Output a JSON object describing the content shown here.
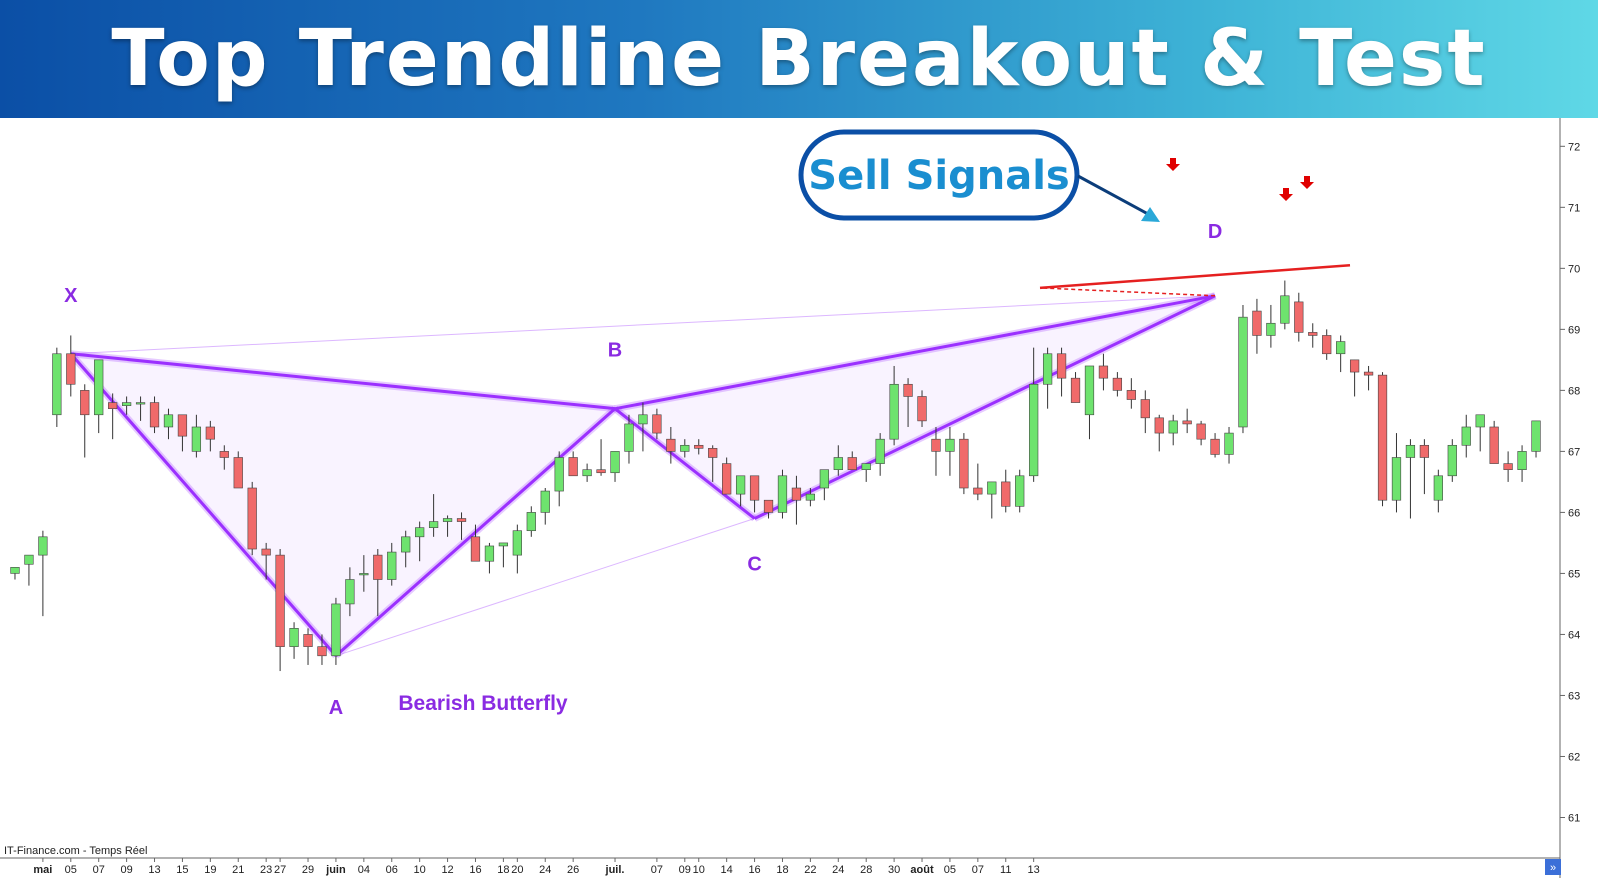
{
  "title": "Top Trendline Breakout & Test",
  "chart_data": {
    "type": "candlestick",
    "source_label": "IT-Finance.com - Temps Réel",
    "y_range": [
      60.5,
      72.3
    ],
    "y_ticks": [
      61,
      62,
      63,
      64,
      65,
      66,
      67,
      68,
      69,
      70,
      71,
      72
    ],
    "x_labels": [
      {
        "i": 2,
        "text": "mai",
        "bold": true
      },
      {
        "i": 4,
        "text": "05"
      },
      {
        "i": 6,
        "text": "07"
      },
      {
        "i": 8,
        "text": "09"
      },
      {
        "i": 10,
        "text": "13"
      },
      {
        "i": 12,
        "text": "15"
      },
      {
        "i": 14,
        "text": "19"
      },
      {
        "i": 16,
        "text": "21"
      },
      {
        "i": 18,
        "text": "23"
      },
      {
        "i": 19,
        "text": "27"
      },
      {
        "i": 21,
        "text": "29"
      },
      {
        "i": 23,
        "text": "juin",
        "bold": true
      },
      {
        "i": 25,
        "text": "04"
      },
      {
        "i": 27,
        "text": "06"
      },
      {
        "i": 29,
        "text": "10"
      },
      {
        "i": 31,
        "text": "12"
      },
      {
        "i": 33,
        "text": "16"
      },
      {
        "i": 35,
        "text": "18"
      },
      {
        "i": 36,
        "text": "20"
      },
      {
        "i": 38,
        "text": "24"
      },
      {
        "i": 40,
        "text": "26"
      },
      {
        "i": 43,
        "text": "juil.",
        "bold": true
      },
      {
        "i": 46,
        "text": "07"
      },
      {
        "i": 48,
        "text": "09"
      },
      {
        "i": 49,
        "text": "10"
      },
      {
        "i": 51,
        "text": "14"
      },
      {
        "i": 53,
        "text": "16"
      },
      {
        "i": 55,
        "text": "18"
      },
      {
        "i": 57,
        "text": "22"
      },
      {
        "i": 59,
        "text": "24"
      },
      {
        "i": 61,
        "text": "28"
      },
      {
        "i": 63,
        "text": "30"
      },
      {
        "i": 65,
        "text": "août",
        "bold": true
      },
      {
        "i": 67,
        "text": "05"
      },
      {
        "i": 69,
        "text": "07"
      },
      {
        "i": 71,
        "text": "11"
      },
      {
        "i": 73,
        "text": "13"
      }
    ],
    "candles": [
      [
        65.0,
        65.1,
        64.9,
        65.1
      ],
      [
        65.15,
        65.3,
        64.8,
        65.3
      ],
      [
        65.3,
        65.7,
        64.3,
        65.6
      ],
      [
        67.6,
        68.7,
        67.4,
        68.6
      ],
      [
        68.6,
        68.9,
        67.9,
        68.1
      ],
      [
        68.0,
        68.1,
        66.9,
        67.6
      ],
      [
        67.6,
        68.4,
        67.3,
        68.5
      ],
      [
        67.8,
        67.95,
        67.2,
        67.7
      ],
      [
        67.75,
        67.9,
        67.6,
        67.8
      ],
      [
        67.8,
        67.9,
        67.5,
        67.8
      ],
      [
        67.8,
        67.9,
        67.3,
        67.4
      ],
      [
        67.4,
        67.7,
        67.2,
        67.6
      ],
      [
        67.6,
        67.6,
        67.0,
        67.25
      ],
      [
        67.0,
        67.6,
        66.9,
        67.4
      ],
      [
        67.4,
        67.5,
        67.0,
        67.2
      ],
      [
        67.0,
        67.1,
        66.7,
        66.9
      ],
      [
        66.9,
        67.0,
        66.4,
        66.4
      ],
      [
        66.4,
        66.5,
        65.3,
        65.4
      ],
      [
        65.4,
        65.5,
        64.9,
        65.3
      ],
      [
        65.3,
        65.4,
        63.4,
        63.8
      ],
      [
        63.8,
        64.2,
        63.6,
        64.1
      ],
      [
        64.0,
        64.1,
        63.5,
        63.8
      ],
      [
        63.8,
        64.0,
        63.5,
        63.65
      ],
      [
        63.65,
        64.6,
        63.5,
        64.5
      ],
      [
        64.5,
        65.1,
        64.3,
        64.9
      ],
      [
        65.0,
        65.3,
        64.7,
        65.0
      ],
      [
        65.3,
        65.4,
        64.3,
        64.9
      ],
      [
        64.9,
        65.5,
        64.8,
        65.35
      ],
      [
        65.35,
        65.7,
        65.1,
        65.6
      ],
      [
        65.6,
        65.85,
        65.2,
        65.75
      ],
      [
        65.75,
        66.3,
        65.6,
        65.85
      ],
      [
        65.85,
        65.95,
        65.6,
        65.9
      ],
      [
        65.9,
        66.0,
        65.55,
        65.85
      ],
      [
        65.6,
        65.8,
        65.2,
        65.2
      ],
      [
        65.2,
        65.5,
        65.0,
        65.45
      ],
      [
        65.45,
        65.5,
        65.1,
        65.5
      ],
      [
        65.3,
        65.8,
        65.0,
        65.7
      ],
      [
        65.7,
        66.1,
        65.6,
        66.0
      ],
      [
        66.0,
        66.4,
        65.8,
        66.35
      ],
      [
        66.35,
        67.0,
        66.1,
        66.9
      ],
      [
        66.9,
        67.0,
        66.7,
        66.6
      ],
      [
        66.6,
        66.8,
        66.5,
        66.7
      ],
      [
        66.7,
        67.2,
        66.6,
        66.65
      ],
      [
        66.65,
        67.0,
        66.5,
        67.0
      ],
      [
        67.0,
        67.6,
        66.8,
        67.45
      ],
      [
        67.45,
        67.8,
        67.0,
        67.6
      ],
      [
        67.6,
        67.7,
        67.2,
        67.3
      ],
      [
        67.2,
        67.4,
        66.8,
        67.0
      ],
      [
        67.0,
        67.2,
        66.9,
        67.1
      ],
      [
        67.1,
        67.2,
        66.95,
        67.05
      ],
      [
        67.05,
        67.1,
        66.5,
        66.9
      ],
      [
        66.8,
        66.9,
        66.3,
        66.3
      ],
      [
        66.3,
        66.5,
        66.1,
        66.6
      ],
      [
        66.6,
        66.6,
        66.0,
        66.2
      ],
      [
        66.2,
        66.2,
        65.9,
        66.0
      ],
      [
        66.0,
        66.7,
        65.9,
        66.6
      ],
      [
        66.4,
        66.6,
        65.8,
        66.2
      ],
      [
        66.2,
        66.4,
        66.1,
        66.3
      ],
      [
        66.4,
        66.7,
        66.2,
        66.7
      ],
      [
        66.7,
        67.1,
        66.6,
        66.9
      ],
      [
        66.9,
        67.0,
        66.7,
        66.7
      ],
      [
        66.7,
        66.8,
        66.5,
        66.8
      ],
      [
        66.8,
        67.3,
        66.6,
        67.2
      ],
      [
        67.2,
        68.4,
        67.1,
        68.1
      ],
      [
        68.1,
        68.2,
        67.4,
        67.9
      ],
      [
        67.9,
        68.0,
        67.4,
        67.5
      ],
      [
        67.2,
        67.4,
        66.6,
        67.0
      ],
      [
        67.0,
        67.4,
        66.6,
        67.2
      ],
      [
        67.2,
        67.3,
        66.3,
        66.4
      ],
      [
        66.4,
        66.8,
        66.2,
        66.3
      ],
      [
        66.3,
        66.5,
        65.9,
        66.5
      ],
      [
        66.5,
        66.7,
        66.0,
        66.1
      ],
      [
        66.1,
        66.7,
        66.0,
        66.6
      ],
      [
        66.6,
        68.7,
        66.5,
        68.1
      ],
      [
        68.1,
        68.7,
        67.7,
        68.6
      ],
      [
        68.6,
        68.7,
        67.9,
        68.2
      ],
      [
        68.2,
        68.3,
        67.8,
        67.8
      ],
      [
        67.6,
        68.4,
        67.2,
        68.4
      ],
      [
        68.4,
        68.6,
        68.0,
        68.2
      ],
      [
        68.2,
        68.3,
        67.9,
        68.0
      ],
      [
        68.0,
        68.2,
        67.7,
        67.85
      ],
      [
        67.85,
        68.0,
        67.3,
        67.55
      ],
      [
        67.55,
        67.6,
        67.0,
        67.3
      ],
      [
        67.3,
        67.6,
        67.1,
        67.5
      ],
      [
        67.5,
        67.7,
        67.3,
        67.45
      ],
      [
        67.45,
        67.5,
        67.1,
        67.2
      ],
      [
        67.2,
        67.3,
        66.9,
        66.95
      ],
      [
        66.95,
        67.4,
        66.8,
        67.3
      ],
      [
        67.4,
        69.4,
        67.3,
        69.2
      ],
      [
        69.3,
        69.5,
        68.6,
        68.9
      ],
      [
        68.9,
        69.4,
        68.7,
        69.1
      ],
      [
        69.1,
        69.8,
        69.0,
        69.55
      ],
      [
        69.45,
        69.6,
        68.8,
        68.95
      ],
      [
        68.95,
        69.1,
        68.7,
        68.9
      ],
      [
        68.9,
        69.0,
        68.5,
        68.6
      ],
      [
        68.6,
        68.9,
        68.3,
        68.8
      ],
      [
        68.5,
        68.5,
        67.9,
        68.3
      ],
      [
        68.3,
        68.4,
        68.0,
        68.25
      ],
      [
        68.25,
        68.3,
        66.1,
        66.2
      ],
      [
        66.2,
        67.3,
        66.0,
        66.9
      ],
      [
        66.9,
        67.2,
        65.9,
        67.1
      ],
      [
        67.1,
        67.2,
        66.3,
        66.9
      ],
      [
        66.2,
        66.7,
        66.0,
        66.6
      ],
      [
        66.6,
        67.2,
        66.5,
        67.1
      ],
      [
        67.1,
        67.6,
        66.9,
        67.4
      ],
      [
        67.4,
        67.6,
        67.0,
        67.6
      ],
      [
        67.4,
        67.5,
        66.8,
        66.8
      ],
      [
        66.8,
        67.0,
        66.5,
        66.7
      ],
      [
        66.7,
        67.1,
        66.5,
        67.0
      ],
      [
        67.0,
        67.5,
        66.9,
        67.5
      ]
    ],
    "candles_x_scale": "index",
    "pattern": {
      "name": "Bearish Butterfly",
      "points": [
        {
          "label": "X",
          "i": 4,
          "value": 68.6
        },
        {
          "label": "A",
          "i": 23,
          "value": 63.65
        },
        {
          "label": "B",
          "i": 43,
          "value": 67.7
        },
        {
          "label": "C",
          "i": 53,
          "value": 65.9
        },
        {
          "label": "D",
          "i": 86,
          "value": 69.55
        }
      ]
    },
    "trendline": {
      "color": "#e52020",
      "from_value": 69.6,
      "to_value": 70.05
    },
    "sell_arrow_color": "#e00000",
    "up_color": "#6ee36e",
    "down_color": "#f06a6a",
    "pattern_color": "#9b30ff"
  },
  "callout": {
    "label": "Sell Signals",
    "border_color": "#0b4fa6",
    "text_color": "#1a8ed0",
    "arrow_color": "#2aa8d8"
  }
}
